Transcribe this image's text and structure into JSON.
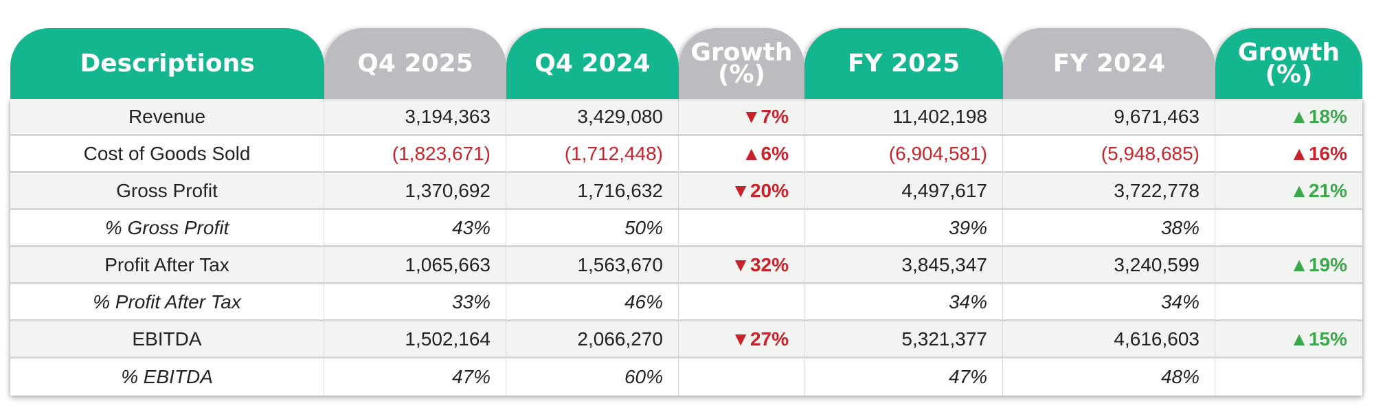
{
  "headers": [
    "Descriptions",
    "Q4 2025",
    "Q4 2024",
    "Growth (%)",
    "FY 2025",
    "FY 2024",
    "Growth (%)"
  ],
  "header_colors": [
    "#13b68f",
    "#bbbcc0",
    "#13b68f",
    "#bbbcc0",
    "#13b68f",
    "#bbbcc0",
    "#13b68f"
  ],
  "rows": [
    {
      "desc": "Revenue",
      "italic": false,
      "q4_2025": "3,194,363",
      "q4_2024": "3,429,080",
      "q_growth": "▼7%",
      "q_growth_color": "red",
      "fy_2025": "11,402,198",
      "fy_2024": "9,671,463",
      "fy_growth": "▲18%",
      "fy_growth_color": "green",
      "negative": false
    },
    {
      "desc": "Cost of Goods Sold",
      "italic": false,
      "q4_2025": "(1,823,671)",
      "q4_2024": "(1,712,448)",
      "q_growth": "▲6%",
      "q_growth_color": "red",
      "fy_2025": "(6,904,581)",
      "fy_2024": "(5,948,685)",
      "fy_growth": "▲16%",
      "fy_growth_color": "red",
      "negative": true
    },
    {
      "desc": "Gross Profit",
      "italic": false,
      "q4_2025": "1,370,692",
      "q4_2024": "1,716,632",
      "q_growth": "▼20%",
      "q_growth_color": "red",
      "fy_2025": "4,497,617",
      "fy_2024": "3,722,778",
      "fy_growth": "▲21%",
      "fy_growth_color": "green",
      "negative": false
    },
    {
      "desc": "% Gross Profit",
      "italic": true,
      "q4_2025": "43%",
      "q4_2024": "50%",
      "q_growth": "",
      "q_growth_color": "red",
      "fy_2025": "39%",
      "fy_2024": "38%",
      "fy_growth": "",
      "fy_growth_color": "green",
      "negative": false
    },
    {
      "desc": "Profit After Tax",
      "italic": false,
      "q4_2025": "1,065,663",
      "q4_2024": "1,563,670",
      "q_growth": "▼32%",
      "q_growth_color": "red",
      "fy_2025": "3,845,347",
      "fy_2024": "3,240,599",
      "fy_growth": "▲19%",
      "fy_growth_color": "green",
      "negative": false
    },
    {
      "desc": "% Profit After Tax",
      "italic": true,
      "q4_2025": "33%",
      "q4_2024": "46%",
      "q_growth": "",
      "q_growth_color": "red",
      "fy_2025": "34%",
      "fy_2024": "34%",
      "fy_growth": "",
      "fy_growth_color": "green",
      "negative": false
    },
    {
      "desc": "EBITDA",
      "italic": false,
      "q4_2025": "1,502,164",
      "q4_2024": "2,066,270",
      "q_growth": "▼27%",
      "q_growth_color": "red",
      "fy_2025": "5,321,377",
      "fy_2024": "4,616,603",
      "fy_growth": "▲15%",
      "fy_growth_color": "green",
      "negative": false
    },
    {
      "desc": "% EBITDA",
      "italic": true,
      "q4_2025": "47%",
      "q4_2024": "60%",
      "q_growth": "",
      "q_growth_color": "red",
      "fy_2025": "47%",
      "fy_2024": "48%",
      "fy_growth": "",
      "fy_growth_color": "green",
      "negative": false
    }
  ]
}
